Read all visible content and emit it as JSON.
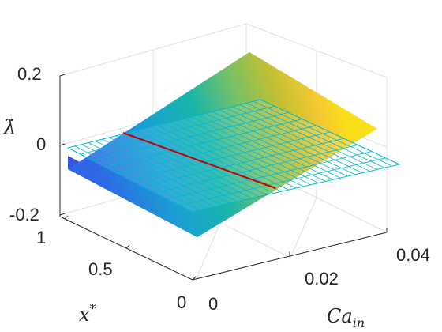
{
  "chart_data": {
    "type": "surface3d",
    "title": "",
    "xlabel": "Ca",
    "xlabel_sub": "in",
    "ylabel": "x",
    "ylabel_sup": "*",
    "zlabel": "λ̇",
    "x_ticks": [
      "0",
      "0.02",
      "0.04"
    ],
    "y_ticks": [
      "0",
      "0.5",
      "1"
    ],
    "z_ticks": [
      "-0.2",
      "0",
      "0.2"
    ],
    "xlim": [
      0,
      0.04
    ],
    "ylim": [
      0,
      1
    ],
    "zlim": [
      -0.2,
      0.2
    ],
    "grid": true,
    "colormap": "parula",
    "surface": {
      "name": "",
      "description_values": {
        "x": [
          0,
          0.04
        ],
        "z_at_x_min": -0.1,
        "z_at_x_max": 0.21
      },
      "z_grid_corners": {
        "x0_y0": -0.1,
        "x0_y1": -0.1,
        "x1_y0": 0.21,
        "x1_y1": 0.21
      }
    },
    "zero_plane": {
      "z": 0,
      "color": "#00bcd4",
      "style": "mesh"
    },
    "intersection_line": {
      "color": "#cc0000",
      "z": 0
    },
    "colors": {
      "axis": "#262626",
      "grid": "#dcdcdc",
      "mesh": "#00b7d4",
      "line": "#d40000",
      "colormap_stops": [
        "#3e26a8",
        "#2c5bf5",
        "#149bd8",
        "#17b5a7",
        "#6cc36b",
        "#c3be30",
        "#f9d21d",
        "#f9fb0e"
      ]
    }
  }
}
